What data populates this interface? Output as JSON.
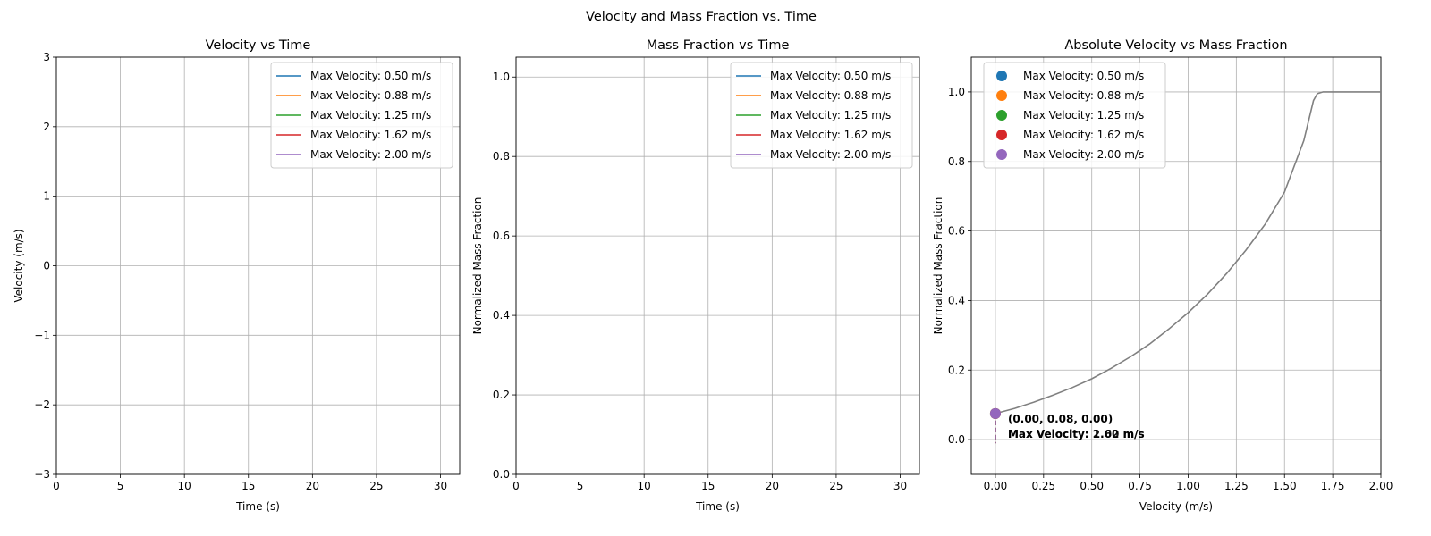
{
  "figure": {
    "suptitle": "Velocity and Mass Fraction vs. Time"
  },
  "colors": {
    "series": [
      "#1f77b4",
      "#ff7f0e",
      "#2ca02c",
      "#d62728",
      "#9467bd"
    ],
    "grid": "#b0b0b0",
    "curve": "#808080"
  },
  "chart_data": [
    {
      "type": "line",
      "title": "Velocity vs Time",
      "xlabel": "Time (s)",
      "ylabel": "Velocity (m/s)",
      "xlim": [
        0,
        31.5
      ],
      "ylim": [
        -3,
        3
      ],
      "xticks": [
        0,
        5,
        10,
        15,
        20,
        25,
        30
      ],
      "yticks": [
        -3,
        -2,
        -1,
        0,
        1,
        2,
        3
      ],
      "ytick_labels": [
        "−3",
        "−2",
        "−1",
        "0",
        "1",
        "2",
        "3"
      ],
      "grid": true,
      "legend": "top-right",
      "series": [
        {
          "name": "Max Velocity: 0.50 m/s",
          "x": [],
          "y": []
        },
        {
          "name": "Max Velocity: 0.88 m/s",
          "x": [],
          "y": []
        },
        {
          "name": "Max Velocity: 1.25 m/s",
          "x": [],
          "y": []
        },
        {
          "name": "Max Velocity: 1.62 m/s",
          "x": [],
          "y": []
        },
        {
          "name": "Max Velocity: 2.00 m/s",
          "x": [],
          "y": []
        }
      ]
    },
    {
      "type": "line",
      "title": "Mass Fraction vs Time",
      "xlabel": "Time (s)",
      "ylabel": "Normalized Mass Fraction",
      "xlim": [
        0,
        31.5
      ],
      "ylim": [
        0,
        1.05
      ],
      "xticks": [
        0,
        5,
        10,
        15,
        20,
        25,
        30
      ],
      "yticks": [
        0.0,
        0.2,
        0.4,
        0.6,
        0.8,
        1.0
      ],
      "ytick_labels": [
        "0.0",
        "0.2",
        "0.4",
        "0.6",
        "0.8",
        "1.0"
      ],
      "grid": true,
      "legend": "top-right",
      "series": [
        {
          "name": "Max Velocity: 0.50 m/s",
          "x": [],
          "y": []
        },
        {
          "name": "Max Velocity: 0.88 m/s",
          "x": [],
          "y": []
        },
        {
          "name": "Max Velocity: 1.25 m/s",
          "x": [],
          "y": []
        },
        {
          "name": "Max Velocity: 1.62 m/s",
          "x": [],
          "y": []
        },
        {
          "name": "Max Velocity: 2.00 m/s",
          "x": [],
          "y": []
        }
      ]
    },
    {
      "type": "scatter",
      "title": "Absolute Velocity vs Mass Fraction",
      "xlabel": "Velocity (m/s)",
      "ylabel": "Normalized Mass Fraction",
      "xlim": [
        -0.125,
        2.0
      ],
      "ylim": [
        -0.1,
        1.1
      ],
      "xticks": [
        0.0,
        0.25,
        0.5,
        0.75,
        1.0,
        1.25,
        1.5,
        1.75,
        2.0
      ],
      "xtick_labels": [
        "0.00",
        "0.25",
        "0.50",
        "0.75",
        "1.00",
        "1.25",
        "1.50",
        "1.75",
        "2.00"
      ],
      "yticks": [
        0.0,
        0.2,
        0.4,
        0.6,
        0.8,
        1.0
      ],
      "ytick_labels": [
        "0.0",
        "0.2",
        "0.4",
        "0.6",
        "0.8",
        "1.0"
      ],
      "grid": true,
      "legend": "top-left",
      "curve": {
        "x": [
          0,
          0.1,
          0.2,
          0.3,
          0.4,
          0.5,
          0.6,
          0.7,
          0.8,
          0.9,
          1.0,
          1.1,
          1.2,
          1.3,
          1.4,
          1.5,
          1.6,
          1.65,
          1.67,
          1.7,
          1.8,
          1.9,
          2.0
        ],
        "y": [
          0.075,
          0.09,
          0.108,
          0.128,
          0.15,
          0.175,
          0.205,
          0.238,
          0.275,
          0.318,
          0.365,
          0.418,
          0.478,
          0.545,
          0.62,
          0.712,
          0.86,
          0.975,
          0.995,
          1.0,
          1.0,
          1.0,
          1.0
        ]
      },
      "points": [
        {
          "name": "Max Velocity: 0.50 m/s",
          "x": 0.0,
          "y": 0.075
        },
        {
          "name": "Max Velocity: 0.88 m/s",
          "x": 0.0,
          "y": 0.075
        },
        {
          "name": "Max Velocity: 1.25 m/s",
          "x": 0.0,
          "y": 0.075
        },
        {
          "name": "Max Velocity: 1.62 m/s",
          "x": 0.0,
          "y": 0.075
        },
        {
          "name": "Max Velocity: 2.00 m/s",
          "x": 0.0,
          "y": 0.075
        }
      ],
      "annotations": [
        "(0.00, 0.08, 0.00)",
        "Max Velocity: 1.62 m/s",
        "Max Velocity: 2.00 m/s"
      ]
    }
  ]
}
